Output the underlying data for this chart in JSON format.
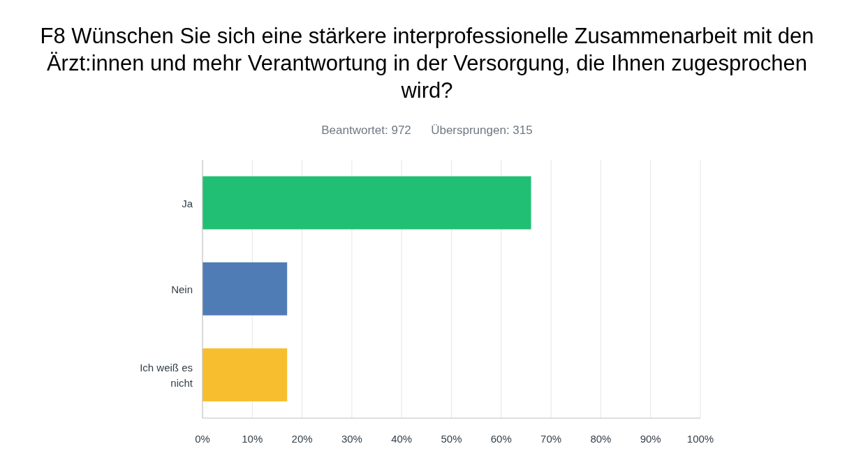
{
  "chart_data": {
    "type": "bar",
    "orientation": "horizontal",
    "title": "F8 Wünschen Sie sich eine stärkere interprofessionelle Zusammenarbeit mit den Ärzt:innen und mehr Verantwortung in der Versorgung, die Ihnen zugesprochen wird?",
    "subtitle": "Beantwortet: 972      Übersprungen: 315",
    "categories": [
      "Ja",
      "Nein",
      "Ich weiß es nicht"
    ],
    "values": [
      66,
      17,
      17
    ],
    "colors": [
      "#21bf73",
      "#507cb6",
      "#f7bf2f"
    ],
    "xlim": [
      0,
      100
    ],
    "xticks": [
      {
        "value": 0,
        "label": "0%"
      },
      {
        "value": 10,
        "label": "10%"
      },
      {
        "value": 20,
        "label": "20%"
      },
      {
        "value": 30,
        "label": "30%"
      },
      {
        "value": 40,
        "label": "40%"
      },
      {
        "value": 50,
        "label": "50%"
      },
      {
        "value": 60,
        "label": "60%"
      },
      {
        "value": 70,
        "label": "70%"
      },
      {
        "value": 80,
        "label": "80%"
      },
      {
        "value": 90,
        "label": "90%"
      },
      {
        "value": 100,
        "label": "100%"
      }
    ],
    "grid": "x",
    "legend": false
  }
}
